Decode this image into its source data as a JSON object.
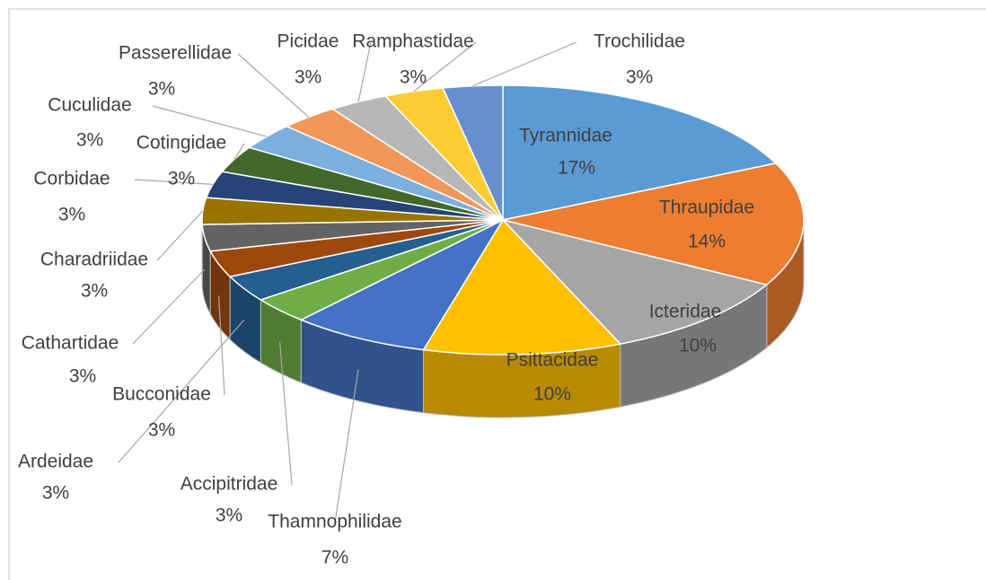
{
  "chart_data": {
    "type": "pie3d",
    "categories": [
      "Tyrannidae",
      "Thraupidae",
      "Icteridae",
      "Psittacidae",
      "Thamnophilidae",
      "Accipitridae",
      "Ardeidae",
      "Bucconidae",
      "Cathartidae",
      "Charadriidae",
      "Corbidae",
      "Cotingidae",
      "Cuculidae",
      "Passerellidae",
      "Picidae",
      "Ramphastidae",
      "Trochilidae"
    ],
    "values": [
      17,
      14,
      10,
      10,
      7,
      3,
      3,
      3,
      3,
      3,
      3,
      3,
      3,
      3,
      3,
      3,
      3
    ],
    "value_labels": [
      "17%",
      "14%",
      "10%",
      "10%",
      "7%",
      "3%",
      "3%",
      "3%",
      "3%",
      "3%",
      "3%",
      "3%",
      "3%",
      "3%",
      "3%",
      "3%",
      "3%"
    ],
    "colors": [
      "#5b9bd5",
      "#ed7d31",
      "#a5a5a5",
      "#ffc000",
      "#4472c4",
      "#70ad47",
      "#255e91",
      "#9e480e",
      "#636363",
      "#997300",
      "#264478",
      "#43682b",
      "#7cafdd",
      "#f1975a",
      "#b7b7b7",
      "#ffcd33",
      "#698ed0"
    ]
  }
}
